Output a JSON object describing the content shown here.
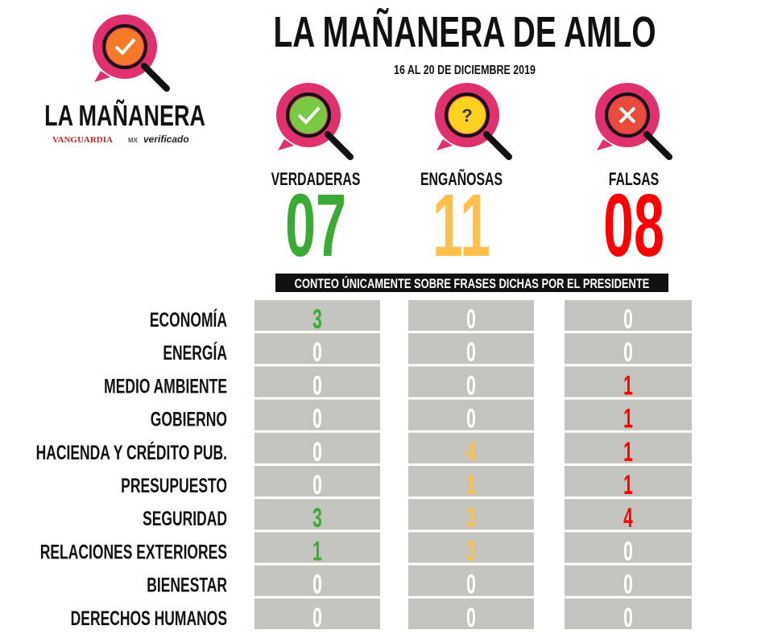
{
  "header": {
    "title": "LA MAÑANERA DE AMLO",
    "subtitle": "16 AL 20 DE DICIEMBRE 2019"
  },
  "logo": {
    "name": "LA MAÑANERA",
    "brand": "VANGUARDIA",
    "brand_suffix": "MX",
    "partner": "verificado"
  },
  "columns": [
    {
      "label": "VERDADERAS",
      "count": "07",
      "color": "#3aaa35"
    },
    {
      "label": "ENGAÑOSAS",
      "count": "11",
      "color": "#ffc04d"
    },
    {
      "label": "FALSAS",
      "count": "08",
      "color": "#ff0000"
    }
  ],
  "note": "CONTEO ÚNICAMENTE SOBRE FRASES DICHAS POR EL PRESIDENTE",
  "table": {
    "rows": [
      {
        "label": "ECONOMÍA",
        "values": [
          3,
          0,
          0
        ]
      },
      {
        "label": "ENERGÍA",
        "values": [
          0,
          0,
          0
        ]
      },
      {
        "label": "MEDIO AMBIENTE",
        "values": [
          0,
          0,
          1
        ]
      },
      {
        "label": "GOBIERNO",
        "values": [
          0,
          0,
          1
        ]
      },
      {
        "label": "HACIENDA Y CRÉDITO PUB.",
        "values": [
          0,
          4,
          1
        ]
      },
      {
        "label": "PRESUPUESTO",
        "values": [
          0,
          1,
          1
        ]
      },
      {
        "label": "SEGURIDAD",
        "values": [
          3,
          3,
          4
        ]
      },
      {
        "label": "RELACIONES EXTERIORES",
        "values": [
          1,
          3,
          0
        ]
      },
      {
        "label": "BIENESTAR",
        "values": [
          0,
          0,
          0
        ]
      },
      {
        "label": "DERECHOS HUMANOS",
        "values": [
          0,
          0,
          0
        ]
      }
    ]
  }
}
